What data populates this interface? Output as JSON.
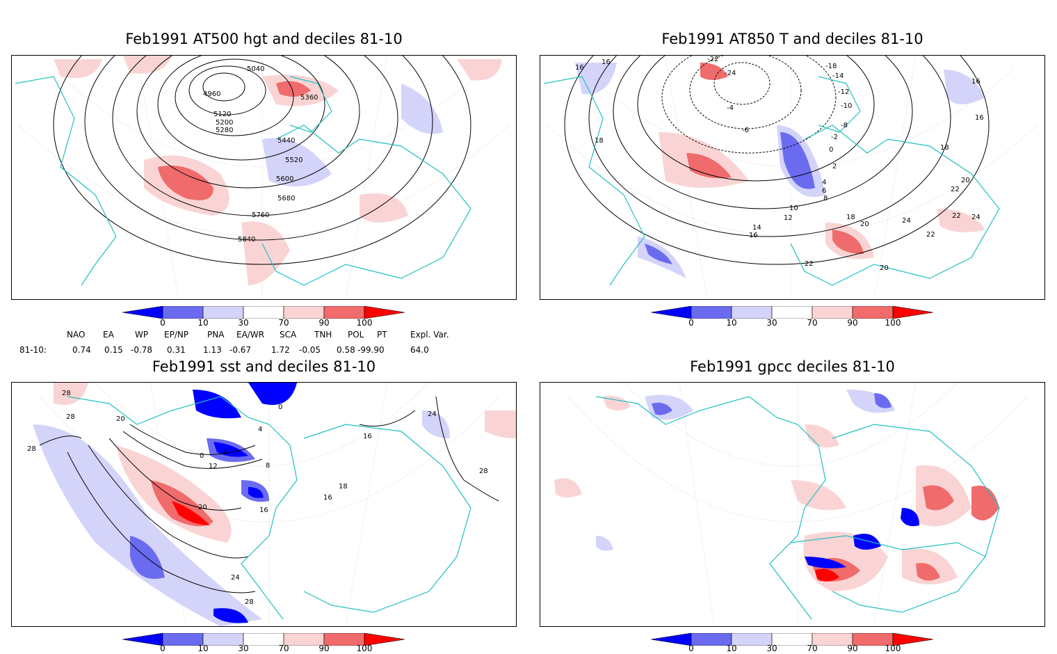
{
  "panels": [
    {
      "id": "hgt500",
      "title": "Feb1991 AT500 hgt and deciles 81-10",
      "contour_labels": [
        "5040",
        "4960",
        "5120",
        "5200",
        "5280",
        "5360",
        "5440",
        "5520",
        "5600",
        "5680",
        "5760",
        "5840"
      ]
    },
    {
      "id": "t850",
      "title": "Feb1991 AT850 T and deciles 81-10",
      "contour_labels": [
        "-22",
        "-24",
        "16",
        "16",
        "-18",
        "-14",
        "-12",
        "-10",
        "-8",
        "18",
        "16",
        "16",
        "-6",
        "-4",
        "-2",
        "0",
        "2",
        "4",
        "6",
        "8",
        "10",
        "12",
        "14",
        "16",
        "18",
        "18",
        "20",
        "22",
        "22",
        "24",
        "24",
        "22",
        "20",
        "22",
        "20"
      ]
    },
    {
      "id": "sst",
      "title": "Feb1991 sst and deciles 81-10",
      "contour_labels": [
        "28",
        "28",
        "20",
        "28",
        "24",
        "28",
        "0",
        "0",
        "4",
        "4",
        "8",
        "12",
        "16",
        "16",
        "18",
        "16",
        "20",
        "24",
        "28"
      ]
    },
    {
      "id": "gpcc",
      "title": "Feb1991 gpcc deciles 81-10",
      "contour_labels": []
    }
  ],
  "colorbar": {
    "labels": [
      "0",
      "10",
      "30",
      "70",
      "90",
      "100"
    ],
    "colors": [
      "#0000ff",
      "#6b6bf0",
      "#d4d4fa",
      "#ffffff",
      "#fad4d4",
      "#f06b6b",
      "#ff0000"
    ]
  },
  "indices": {
    "headers": [
      "NAO",
      "EA",
      "WP",
      "EP/NP",
      "PNA",
      "EA/WR",
      "SCA",
      "TNH",
      "POL",
      "PT",
      "Expl. Var."
    ],
    "row_label": "81-10:",
    "values": [
      "0.74",
      "0.15",
      "-0.78",
      "0.31",
      "1.13",
      "-0.67",
      "1.72",
      "-0.05",
      "0.58",
      "-99.90",
      "64.0"
    ]
  }
}
